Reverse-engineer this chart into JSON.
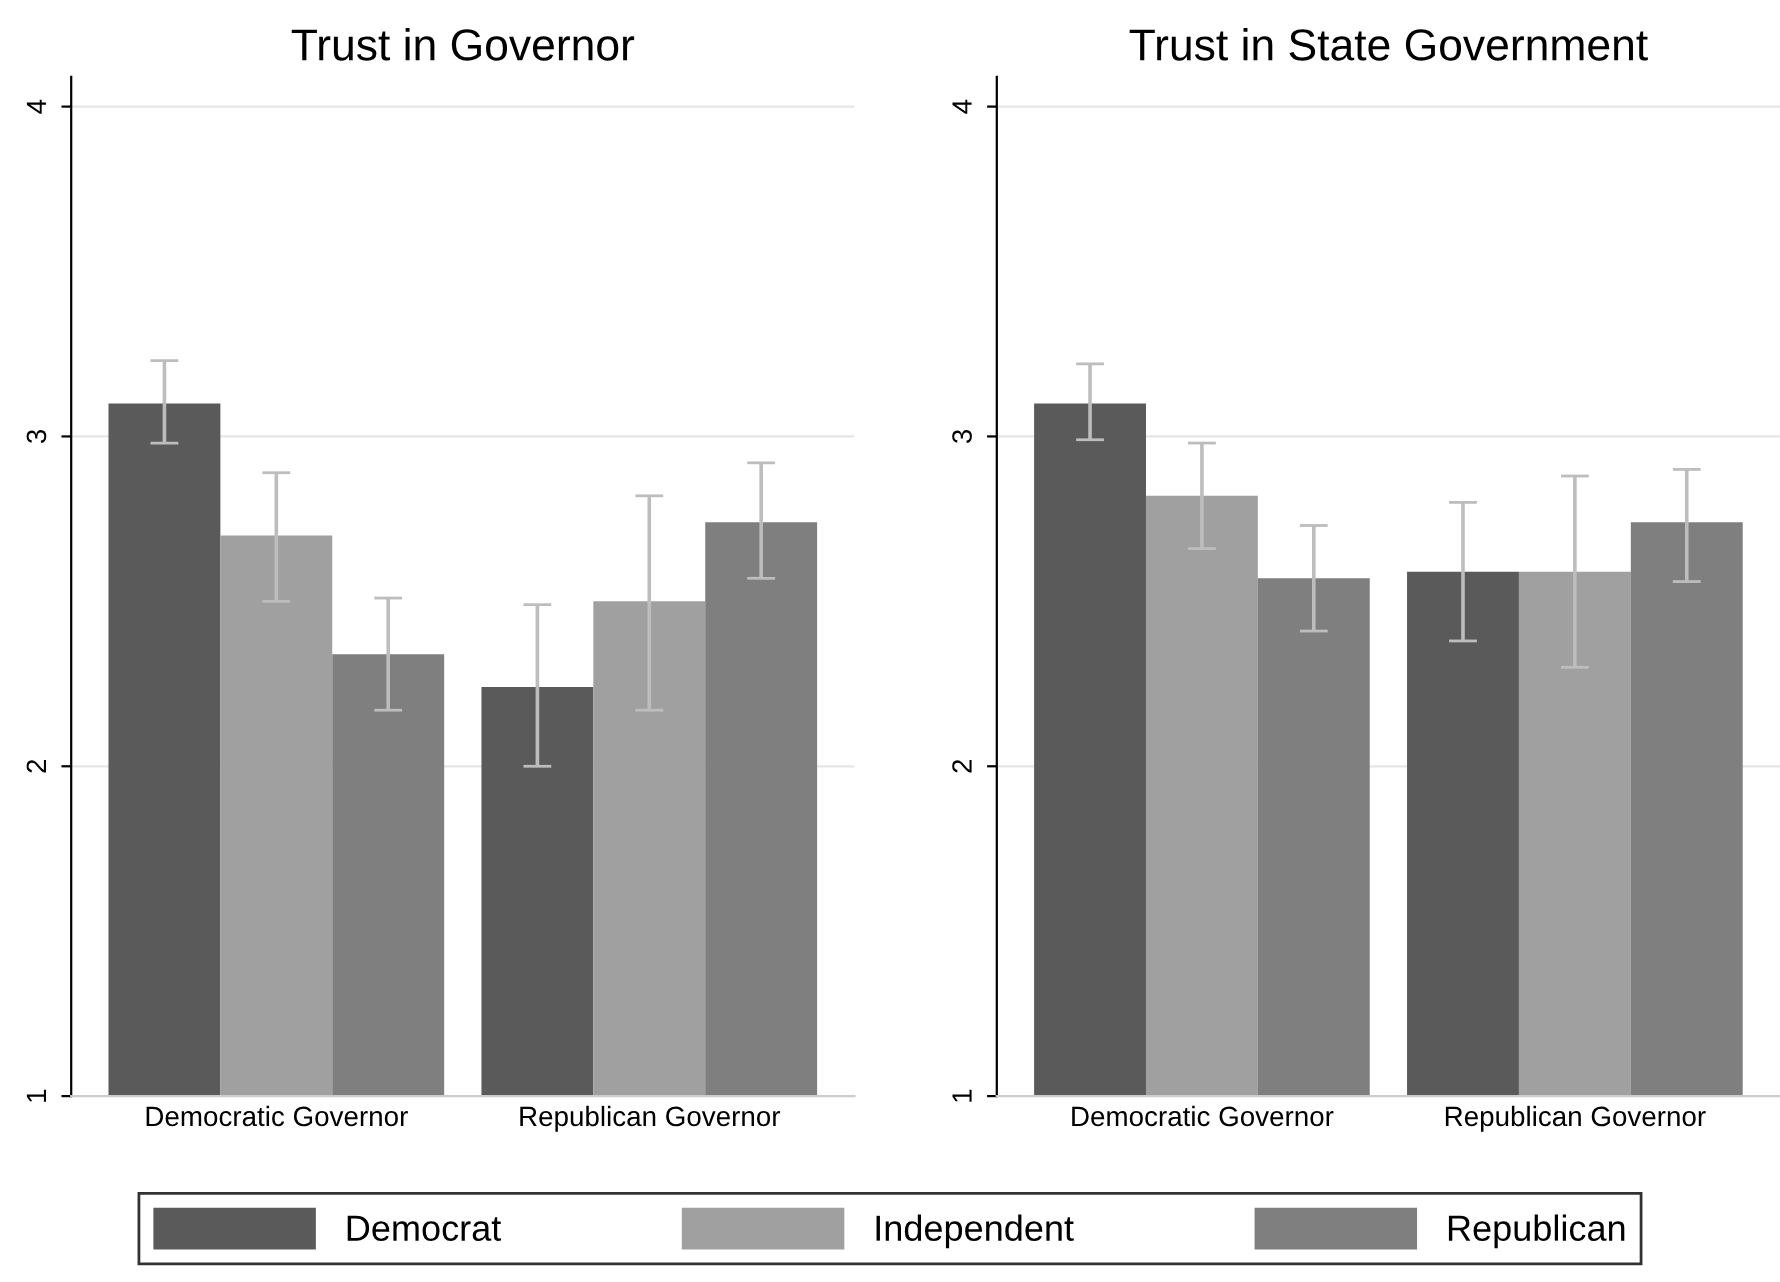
{
  "chart_data": [
    {
      "type": "bar",
      "title": "Trust in Governor",
      "categories": [
        "Democratic Governor",
        "Republican Governor"
      ],
      "ylim": [
        1,
        4.09
      ],
      "yticks": [
        1,
        2,
        3,
        4
      ],
      "grid": "y",
      "legend": "bottom",
      "series": [
        {
          "name": "Democrat",
          "color": "#5a5a5a",
          "values": [
            3.1,
            2.24
          ],
          "errors": [
            [
              2.98,
              3.23
            ],
            [
              2.0,
              2.49
            ]
          ]
        },
        {
          "name": "Independent",
          "color": "#a0a0a0",
          "values": [
            2.7,
            2.5
          ],
          "errors": [
            [
              2.5,
              2.89
            ],
            [
              2.17,
              2.82
            ]
          ]
        },
        {
          "name": "Republican",
          "color": "#7f7f7f",
          "values": [
            2.34,
            2.74
          ],
          "errors": [
            [
              2.17,
              2.51
            ],
            [
              2.57,
              2.92
            ]
          ]
        }
      ]
    },
    {
      "type": "bar",
      "title": "Trust in State Government",
      "categories": [
        "Democratic Governor",
        "Republican Governor"
      ],
      "ylim": [
        1,
        4.09
      ],
      "yticks": [
        1,
        2,
        3,
        4
      ],
      "grid": "y",
      "series": [
        {
          "color": "#5a5a5a",
          "values": [
            3.1,
            2.59
          ],
          "errors": [
            [
              2.99,
              3.22
            ],
            [
              2.38,
              2.8
            ]
          ]
        },
        {
          "color": "#a0a0a0",
          "values": [
            2.82,
            2.59
          ],
          "errors": [
            [
              2.66,
              2.98
            ],
            [
              2.3,
              2.88
            ]
          ]
        },
        {
          "color": "#7f7f7f",
          "values": [
            2.57,
            2.74
          ],
          "errors": [
            [
              2.41,
              2.73
            ],
            [
              2.56,
              2.9
            ]
          ]
        }
      ]
    }
  ]
}
